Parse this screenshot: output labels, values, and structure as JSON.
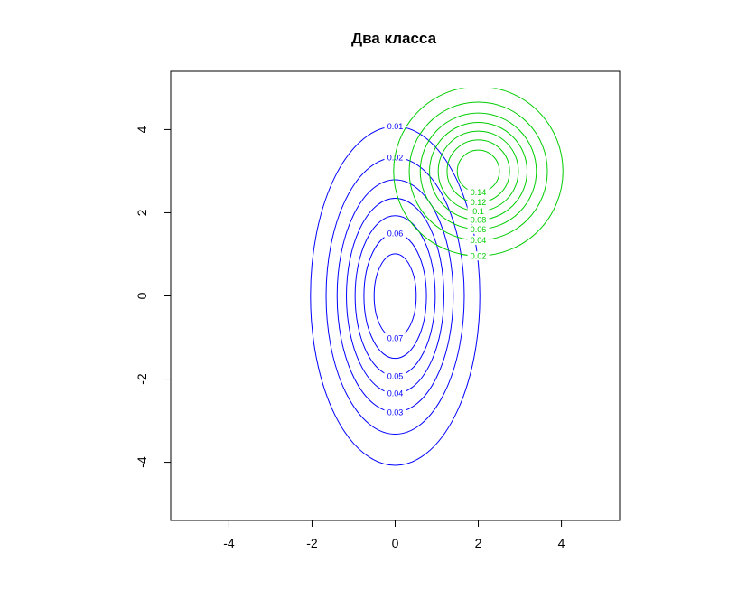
{
  "chart_data": {
    "type": "contour",
    "title": "Два класса",
    "xlabel": "",
    "ylabel": "",
    "xlim": [
      -5.4,
      5.4
    ],
    "ylim": [
      -5.4,
      5.4
    ],
    "x_ticks": [
      -4,
      -2,
      0,
      2,
      4
    ],
    "y_ticks": [
      -4,
      -2,
      0,
      2,
      4
    ],
    "x_tick_labels": [
      "-4",
      "-2",
      "0",
      "2",
      "4"
    ],
    "y_tick_labels": [
      "-4",
      "-2",
      "0",
      "2",
      "4"
    ],
    "grid": false,
    "series": [
      {
        "color": "#0000ff",
        "mean": [
          0,
          0
        ],
        "sd": [
          1,
          2
        ],
        "levels": [
          0.01,
          0.02,
          0.03,
          0.04,
          0.05,
          0.06,
          0.07
        ],
        "level_labels": [
          "0.01",
          "0.02",
          "0.03",
          "0.04",
          "0.05",
          "0.06",
          "0.07"
        ]
      },
      {
        "color": "#00cd00",
        "mean": [
          2,
          3
        ],
        "sd": [
          1,
          1
        ],
        "levels": [
          0.02,
          0.04,
          0.06,
          0.08,
          0.1,
          0.12,
          0.14
        ],
        "level_labels": [
          "0.02",
          "0.04",
          "0.06",
          "0.08",
          "0.1",
          "0.12",
          "0.14"
        ],
        "clip_y_max": 5
      }
    ]
  }
}
